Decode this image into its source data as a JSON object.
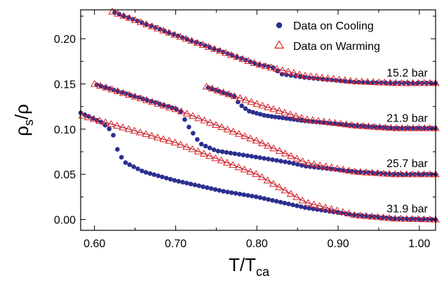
{
  "chart_data": {
    "type": "scatter",
    "xlabel": {
      "main": "T/T",
      "sub": "ca"
    },
    "ylabel": {
      "main": "ρ",
      "sub": "s",
      "tail": "/ρ"
    },
    "xlim": [
      0.583,
      1.02
    ],
    "ylim": [
      -0.012,
      0.232
    ],
    "xticks": [
      {
        "value": 0.6,
        "label": "0.60"
      },
      {
        "value": 0.7,
        "label": "0.70"
      },
      {
        "value": 0.8,
        "label": "0.80"
      },
      {
        "value": 0.9,
        "label": "0.90"
      },
      {
        "value": 1.0,
        "label": "1.00"
      }
    ],
    "yticks": [
      {
        "value": 0.0,
        "label": "0.00"
      },
      {
        "value": 0.05,
        "label": "0.05"
      },
      {
        "value": 0.1,
        "label": "0.10"
      },
      {
        "value": 0.15,
        "label": "0.15"
      },
      {
        "value": 0.2,
        "label": "0.20"
      }
    ],
    "grid": false,
    "legend": {
      "position": "top-right",
      "entries": [
        {
          "name": "Data on Cooling",
          "marker": "filled-circle",
          "color": "#2b2f8f"
        },
        {
          "name": "Data on Warming",
          "marker": "open-triangle",
          "color": "#e02020"
        }
      ]
    },
    "fit_line_color": "#a02848",
    "datasets": [
      {
        "pressure_label": "15.2 bar",
        "label_at": [
          0.985,
          0.158
        ],
        "warming": {
          "x_start": 0.622,
          "x_end": 1.02,
          "points": 58,
          "curve": [
            [
              0.622,
              0.23
            ],
            [
              0.7,
              0.204
            ],
            [
              0.8,
              0.172
            ],
            [
              0.86,
              0.159
            ],
            [
              0.92,
              0.153
            ],
            [
              0.97,
              0.151
            ],
            [
              1.02,
              0.151
            ]
          ]
        },
        "cooling": {
          "x_start": 0.625,
          "x_end": 1.02,
          "points": 72,
          "curve": [
            [
              0.625,
              0.229
            ],
            [
              0.7,
              0.204
            ],
            [
              0.8,
              0.172
            ],
            [
              0.82,
              0.168
            ],
            [
              0.83,
              0.161
            ],
            [
              0.86,
              0.157
            ],
            [
              0.92,
              0.152
            ],
            [
              0.97,
              0.151
            ],
            [
              1.02,
              0.151
            ]
          ]
        }
      },
      {
        "pressure_label": "21.9 bar",
        "label_at": [
          0.985,
          0.108
        ],
        "warming": {
          "x_start": 0.738,
          "x_end": 1.02,
          "points": 42,
          "curve": [
            [
              0.738,
              0.147
            ],
            [
              0.8,
              0.128
            ],
            [
              0.86,
              0.111
            ],
            [
              0.92,
              0.104
            ],
            [
              0.97,
              0.101
            ],
            [
              1.02,
              0.101
            ]
          ]
        },
        "cooling": {
          "x_start": 0.74,
          "x_end": 1.02,
          "points": 62,
          "curve": [
            [
              0.74,
              0.146
            ],
            [
              0.76,
              0.14
            ],
            [
              0.773,
              0.136
            ],
            [
              0.778,
              0.128
            ],
            [
              0.79,
              0.12
            ],
            [
              0.81,
              0.115
            ],
            [
              0.86,
              0.109
            ],
            [
              0.92,
              0.104
            ],
            [
              0.97,
              0.101
            ],
            [
              1.02,
              0.101
            ]
          ]
        }
      },
      {
        "pressure_label": "25.7 bar",
        "label_at": [
          0.985,
          0.058
        ],
        "warming": {
          "x_start": 0.6,
          "x_end": 1.02,
          "points": 60,
          "curve": [
            [
              0.6,
              0.15
            ],
            [
              0.7,
              0.122
            ],
            [
              0.8,
              0.087
            ],
            [
              0.86,
              0.063
            ],
            [
              0.92,
              0.053
            ],
            [
              0.97,
              0.05
            ],
            [
              1.02,
              0.05
            ]
          ]
        },
        "cooling": {
          "x_start": 0.603,
          "x_end": 1.02,
          "points": 82,
          "curve": [
            [
              0.603,
              0.149
            ],
            [
              0.68,
              0.128
            ],
            [
              0.705,
              0.121
            ],
            [
              0.715,
              0.104
            ],
            [
              0.73,
              0.084
            ],
            [
              0.75,
              0.076
            ],
            [
              0.8,
              0.069
            ],
            [
              0.84,
              0.063
            ],
            [
              0.86,
              0.059
            ],
            [
              0.92,
              0.053
            ],
            [
              0.97,
              0.05
            ],
            [
              1.02,
              0.05
            ]
          ]
        }
      },
      {
        "pressure_label": "31.9 bar",
        "label_at": [
          0.985,
          0.008
        ],
        "warming": {
          "x_start": 0.585,
          "x_end": 1.02,
          "points": 62,
          "curve": [
            [
              0.585,
              0.115
            ],
            [
              0.6,
              0.111
            ],
            [
              0.7,
              0.085
            ],
            [
              0.8,
              0.05
            ],
            [
              0.86,
              0.019
            ],
            [
              0.92,
              0.005
            ],
            [
              0.97,
              0.001
            ],
            [
              1.02,
              0.0
            ]
          ]
        },
        "cooling": {
          "x_start": 0.583,
          "x_end": 1.02,
          "points": 88,
          "curve": [
            [
              0.583,
              0.118
            ],
            [
              0.61,
              0.107
            ],
            [
              0.622,
              0.097
            ],
            [
              0.628,
              0.078
            ],
            [
              0.636,
              0.064
            ],
            [
              0.66,
              0.053
            ],
            [
              0.7,
              0.043
            ],
            [
              0.76,
              0.031
            ],
            [
              0.8,
              0.025
            ],
            [
              0.86,
              0.013
            ],
            [
              0.92,
              0.005
            ],
            [
              0.97,
              0.001
            ],
            [
              1.02,
              0.0
            ]
          ]
        }
      }
    ]
  }
}
